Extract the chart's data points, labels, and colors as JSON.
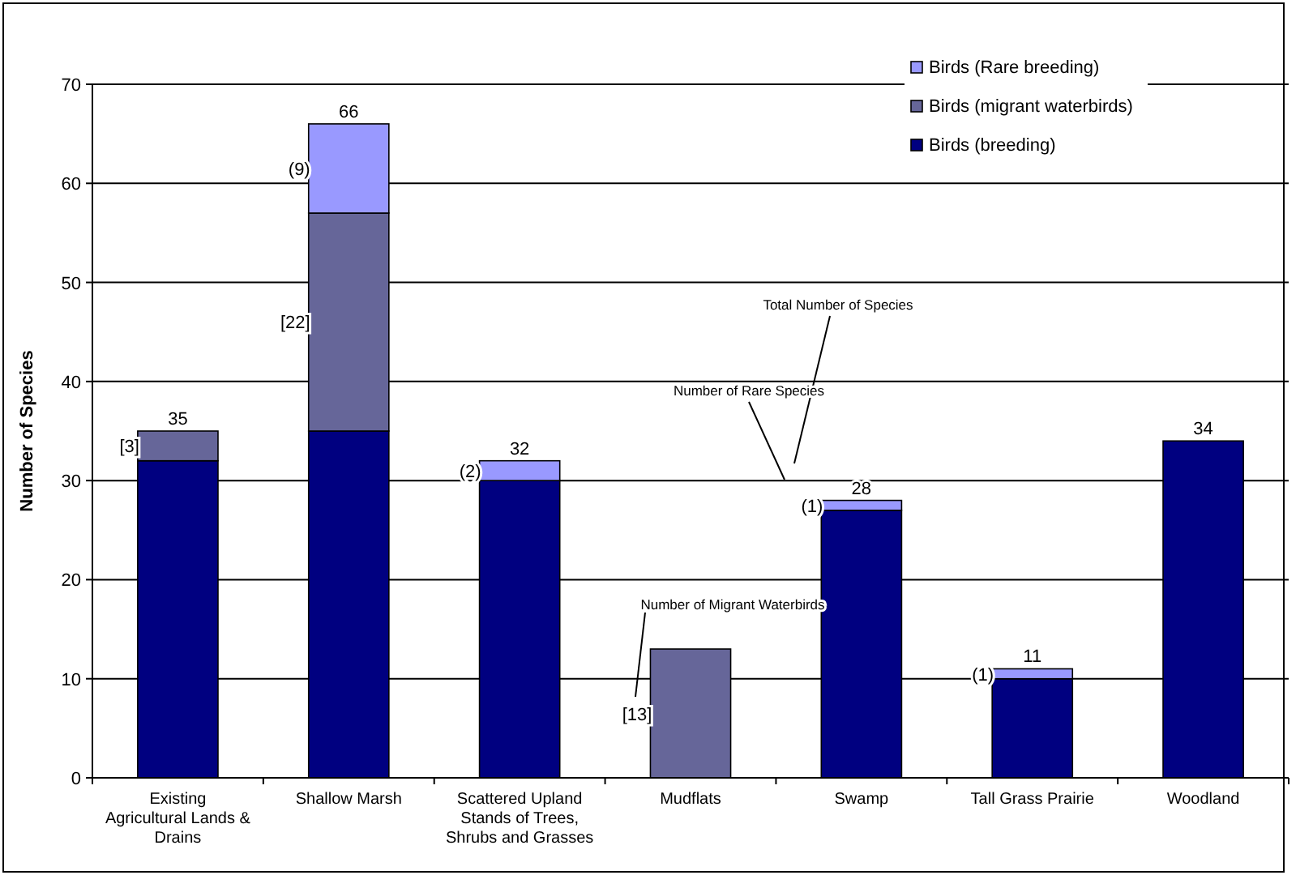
{
  "chart_data": {
    "type": "bar",
    "stacked": true,
    "ylabel": "Number of Species",
    "categories": [
      "Existing Agricultural Lands & Drains",
      "Shallow Marsh",
      "Scattered Upland Stands of Trees, Shrubs and Grasses",
      "Mudflats",
      "Swamp",
      "Tall Grass Prairie",
      "Woodland"
    ],
    "series": [
      {
        "name": "Birds (breeding)",
        "color": "#000080",
        "values": [
          32,
          35,
          30,
          null,
          27,
          10,
          34
        ]
      },
      {
        "name": "Birds (migrant waterbirds)",
        "color": "#666699",
        "values": [
          3,
          22,
          null,
          13,
          null,
          null,
          null
        ],
        "value_labels": [
          "[3]",
          "[22]",
          null,
          "[13]",
          null,
          null,
          null
        ]
      },
      {
        "name": "Birds (Rare breeding)",
        "color": "#9999ff",
        "values": [
          null,
          9,
          2,
          null,
          1,
          1,
          null
        ],
        "value_labels": [
          null,
          "(9)",
          "(2)",
          null,
          "(1)",
          "(1)",
          null
        ]
      }
    ],
    "totals": [
      "35",
      "66",
      "32",
      null,
      "28",
      "11",
      "34"
    ],
    "ylim": [
      0,
      70
    ],
    "yticks": [
      0,
      10,
      20,
      30,
      40,
      50,
      60,
      70
    ],
    "grid": "y",
    "legend": "top right",
    "annotations": [
      "Total Number of Species",
      "Number of Rare Species",
      "Number of Migrant Waterbirds"
    ]
  }
}
